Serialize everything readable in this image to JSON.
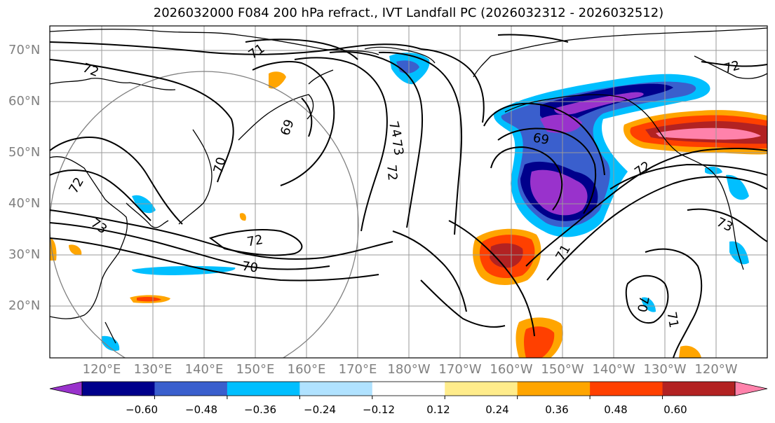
{
  "title": "2026032000 F084 200 hPa refract., IVT Landfall PC (2026032312 - 2026032512)",
  "lat_ticks": [
    "70°N",
    "60°N",
    "50°N",
    "40°N",
    "30°N",
    "20°N"
  ],
  "lon_ticks": [
    "120°E",
    "130°E",
    "140°E",
    "150°E",
    "160°E",
    "170°E",
    "180°W",
    "170°W",
    "160°W",
    "150°W",
    "140°W",
    "130°W",
    "120°W"
  ],
  "colorbar": {
    "levels": [
      "−0.60",
      "−0.48",
      "−0.36",
      "−0.24",
      "−0.12",
      "0.12",
      "0.24",
      "0.36",
      "0.48",
      "0.60"
    ],
    "colors": [
      "#9932cc",
      "#00008b",
      "#3a5fcd",
      "#00bfff",
      "#b0e2ff",
      "#ffffff",
      "#ffec8b",
      "#ffa500",
      "#ff4000",
      "#b22222",
      "#ff82ab"
    ]
  },
  "contour_labels": {
    "c1": "71",
    "c2": "72",
    "c3": "69",
    "c4": "70",
    "c5": "74",
    "c6": "73",
    "c7": "72",
    "c8": "69",
    "c9": "72",
    "c10": "73",
    "c11": "72",
    "c12": "70",
    "c13": "71",
    "c14": "73",
    "c15": "71",
    "c16": "70",
    "c17": "72",
    "c18": "72"
  }
}
